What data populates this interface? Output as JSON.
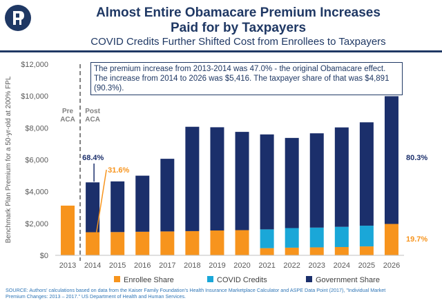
{
  "title_line1": "Almost Entire Obamacare Premium Increases",
  "title_line2": "Paid for by Taxpayers",
  "subtitle": "COVID Credits Further Shifted Cost from Enrollees to Taxpayers",
  "annotation_box": "The premium increase from 2013-2014 was 47.0% - the original Obamacare effect. The increase from 2014 to 2026 was $5,416. The taxpayer share of that was $4,891 (90.3%).",
  "source": "SOURCE: Authors' calculations based on data from the Kaiser Family Foundation's Health Insurance Marketplace Calculator and ASPE Data Point (2017), \"Individual Market Premium Changes: 2013 – 2017.\" US Department of Health and Human Services.",
  "colors": {
    "enrollee": "#f7941d",
    "covid": "#1aa7d8",
    "government": "#1b2f6b",
    "title": "#1f3864"
  },
  "chart_data": {
    "type": "bar",
    "stacked": true,
    "categories": [
      "2013",
      "2014",
      "2015",
      "2016",
      "2017",
      "2018",
      "2019",
      "2020",
      "2021",
      "2022",
      "2023",
      "2024",
      "2025",
      "2026"
    ],
    "series": [
      {
        "name": "Enrollee Share",
        "values": [
          3120,
          1450,
          1460,
          1480,
          1500,
          1520,
          1560,
          1580,
          450,
          480,
          500,
          520,
          560,
          1970
        ]
      },
      {
        "name": "COVID Credits",
        "values": [
          0,
          0,
          0,
          0,
          0,
          0,
          0,
          0,
          1180,
          1230,
          1240,
          1270,
          1300,
          0
        ]
      },
      {
        "name": "Government Share",
        "values": [
          0,
          3130,
          3180,
          3520,
          4560,
          6550,
          6480,
          6170,
          5960,
          5660,
          5920,
          6240,
          6490,
          8020
        ]
      }
    ],
    "title": "Almost Entire Obamacare Premium Increases Paid for by Taxpayers",
    "xlabel": "",
    "ylabel": "Benchmark Plan Premium for a 50-yr-old at 200% FPL",
    "ylim": [
      0,
      12000
    ],
    "yticks": [
      0,
      2000,
      4000,
      6000,
      8000,
      10000,
      12000
    ],
    "ytick_labels": [
      "$0",
      "$2,000",
      "$4,000",
      "$6,000",
      "$8,000",
      "$10,000",
      "$12,000"
    ],
    "legend_position": "bottom",
    "annotations": {
      "pre_aca": "Pre ACA",
      "post_aca": "Post ACA",
      "gov_2014_pct": "68.4%",
      "enr_2014_pct": "31.6%",
      "gov_2026_pct": "80.3%",
      "enr_2026_pct": "19.7%"
    }
  }
}
